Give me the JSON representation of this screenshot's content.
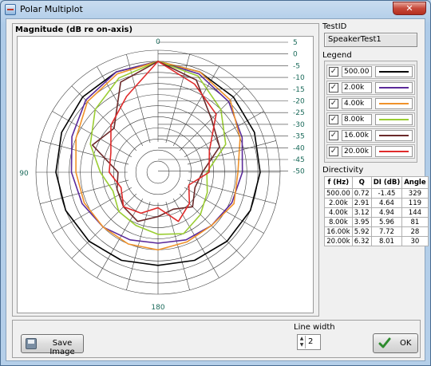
{
  "window": {
    "title": "Polar Multiplot",
    "close_label": "✕"
  },
  "plot": {
    "title": "Magnitude (dB re on-axis)",
    "angle_labels": {
      "top": "0",
      "left": "90",
      "bottom": "180"
    },
    "db_labels": [
      "5",
      "0",
      "-5",
      "-10",
      "-15",
      "-20",
      "-25",
      "-30",
      "-35",
      "-40",
      "-45",
      "-50"
    ]
  },
  "chart_data": {
    "type": "polar-line",
    "title": "Magnitude (dB re on-axis)",
    "r_range_db": [
      -50,
      5
    ],
    "r_ticks_db": [
      5,
      0,
      -5,
      -10,
      -15,
      -20,
      -25,
      -30,
      -35,
      -40,
      -45,
      -50
    ],
    "theta_labels": [
      "0",
      "90",
      "180"
    ],
    "angles_deg": [
      0,
      22.5,
      45,
      67.5,
      90,
      112.5,
      135,
      157.5,
      180,
      202.5,
      225,
      247.5,
      270,
      292.5,
      315,
      337.5
    ],
    "series": [
      {
        "name": "500.00",
        "color": "#000000",
        "values": [
          0,
          -1,
          -2,
          -3,
          -4,
          -5,
          -6,
          -7,
          -8,
          -7,
          -6,
          -5,
          -4,
          -3,
          -2,
          -1
        ]
      },
      {
        "name": "2.00k",
        "color": "#5b2a9a",
        "values": [
          0,
          -2,
          -5,
          -9,
          -12,
          -14,
          -16,
          -17,
          -18,
          -17,
          -15,
          -13,
          -11,
          -8,
          -4,
          -1
        ]
      },
      {
        "name": "4.00k",
        "color": "#f0922a",
        "values": [
          0,
          -1,
          -4,
          -10,
          -14,
          -13,
          -16,
          -16,
          -15,
          -15,
          -15,
          -14,
          -13,
          -10,
          -5,
          -2
        ]
      },
      {
        "name": "8.00k",
        "color": "#9acd32",
        "values": [
          0,
          -3,
          -10,
          -17,
          -28,
          -26,
          -23,
          -20,
          -22,
          -24,
          -25,
          -28,
          -24,
          -17,
          -10,
          -4
        ]
      },
      {
        "name": "16.00k",
        "color": "#6b2a2a",
        "values": [
          0,
          -5,
          -16,
          -20,
          -30,
          -32,
          -28,
          -32,
          -30,
          -26,
          -28,
          -30,
          -32,
          -18,
          -22,
          -6
        ]
      },
      {
        "name": "20.00k",
        "color": "#e02b2b",
        "values": [
          0,
          -7,
          -13,
          -25,
          -27,
          -35,
          -30,
          -26,
          -34,
          -30,
          -28,
          -32,
          -28,
          -27,
          -20,
          -13
        ]
      }
    ]
  },
  "side": {
    "testid_label": "TestID",
    "testid_value": "SpeakerTest1",
    "legend_label": "Legend",
    "directivity_label": "Directivity"
  },
  "legend": [
    {
      "label": "500.00",
      "color": "#000000",
      "checked": "✓"
    },
    {
      "label": "2.00k",
      "color": "#5b2a9a",
      "checked": "✓"
    },
    {
      "label": "4.00k",
      "color": "#f0922a",
      "checked": "✓"
    },
    {
      "label": "8.00k",
      "color": "#9acd32",
      "checked": "✓"
    },
    {
      "label": "16.00k",
      "color": "#6b2a2a",
      "checked": "✓"
    },
    {
      "label": "20.00k",
      "color": "#e02b2b",
      "checked": "✓"
    }
  ],
  "directivity": {
    "headers": [
      "f (Hz)",
      "Q",
      "DI (dB)",
      "Angle"
    ],
    "rows": [
      [
        "500.00",
        "0.72",
        "-1.45",
        "329"
      ],
      [
        "2.00k",
        "2.91",
        "4.64",
        "119"
      ],
      [
        "4.00k",
        "3.12",
        "4.94",
        "144"
      ],
      [
        "8.00k",
        "3.95",
        "5.96",
        "81"
      ],
      [
        "16.00k",
        "5.92",
        "7.72",
        "28"
      ],
      [
        "20.00k",
        "6.32",
        "8.01",
        "30"
      ]
    ]
  },
  "bottom": {
    "save_label": "Save Image",
    "line_width_label": "Line width",
    "line_width_value": "2",
    "ok_label": "OK"
  }
}
